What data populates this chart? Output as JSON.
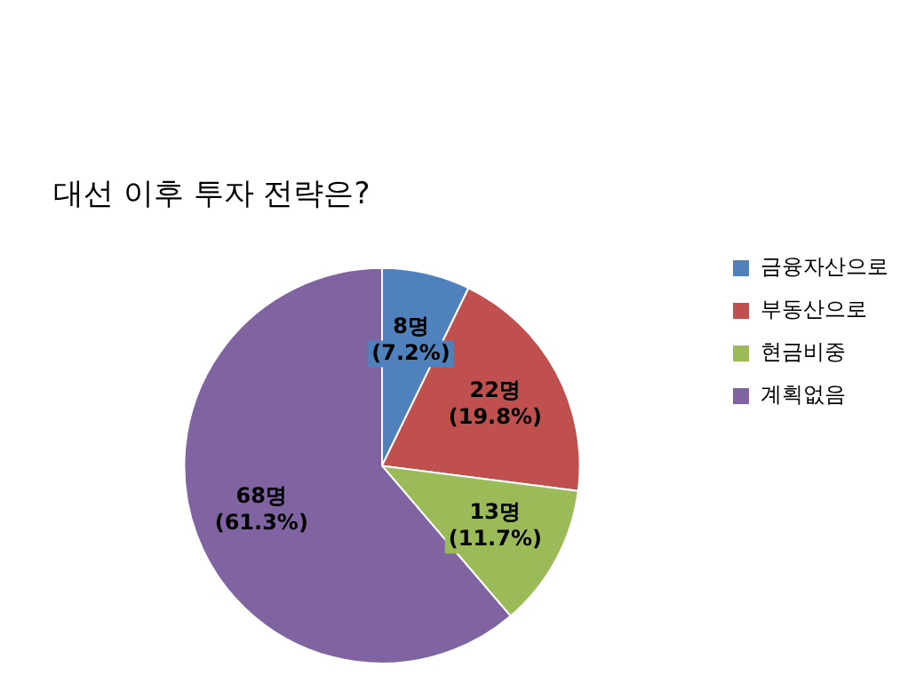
{
  "chart_data": {
    "type": "pie",
    "title": "대선 이후 투자 전략은?",
    "categories": [
      "금융자산으로",
      "부동산으로",
      "현금비중",
      "계획없음"
    ],
    "values": [
      8,
      22,
      13,
      68
    ],
    "colors": [
      "#4f81bd",
      "#c0504d",
      "#9bbb59",
      "#8064a2"
    ],
    "value_labels": [
      "8명 (7.2%)",
      "22명 (19.8%)",
      "13명 (11.7%)",
      "68명 (61.3%)"
    ],
    "legend": "right"
  }
}
